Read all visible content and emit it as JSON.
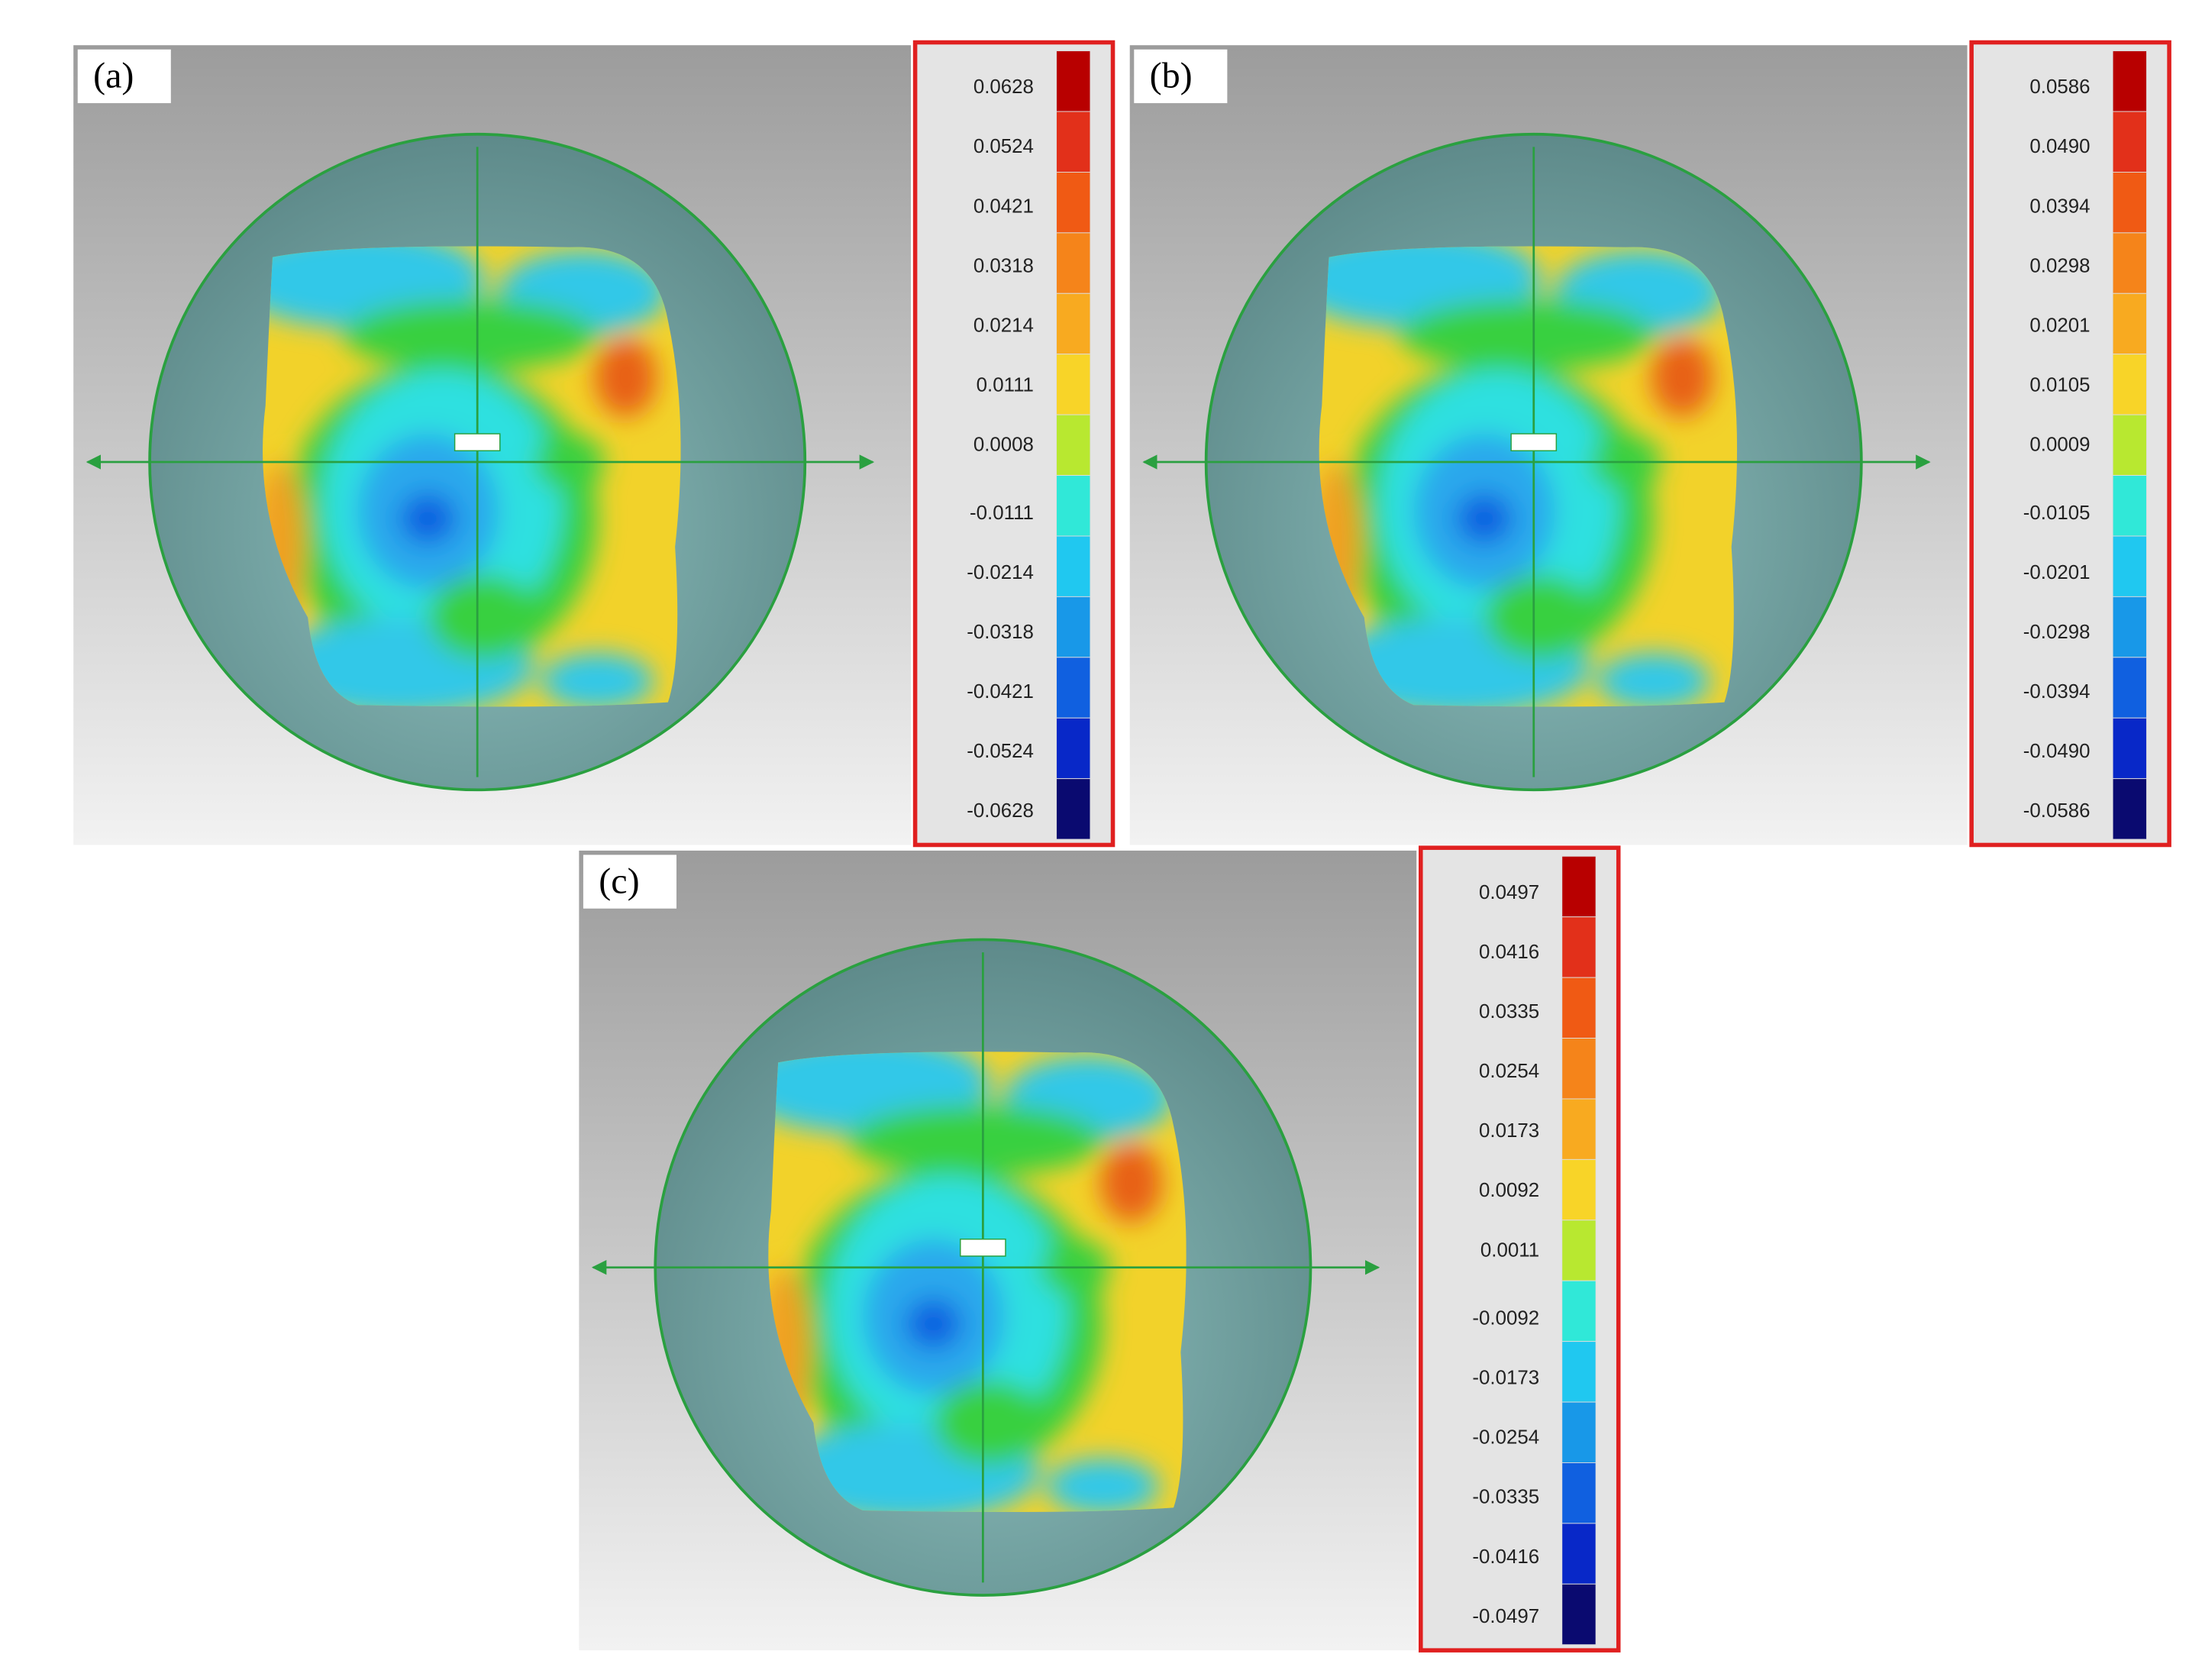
{
  "panels": [
    {
      "label": "(a)",
      "legend_labels": [
        "0.0628",
        "0.0524",
        "0.0421",
        "0.0318",
        "0.0214",
        "0.0111",
        "0.0008",
        "-0.0111",
        "-0.0214",
        "-0.0318",
        "-0.0421",
        "-0.0524",
        "-0.0628"
      ]
    },
    {
      "label": "(b)",
      "legend_labels": [
        "0.0586",
        "0.0490",
        "0.0394",
        "0.0298",
        "0.0201",
        "0.0105",
        "0.0009",
        "-0.0105",
        "-0.0201",
        "-0.0298",
        "-0.0394",
        "-0.0490",
        "-0.0586"
      ]
    },
    {
      "label": "(c)",
      "legend_labels": [
        "0.0497",
        "0.0416",
        "0.0335",
        "0.0254",
        "0.0173",
        "0.0092",
        "0.0011",
        "-0.0092",
        "-0.0173",
        "-0.0254",
        "-0.0335",
        "-0.0416",
        "-0.0497"
      ]
    }
  ]
}
